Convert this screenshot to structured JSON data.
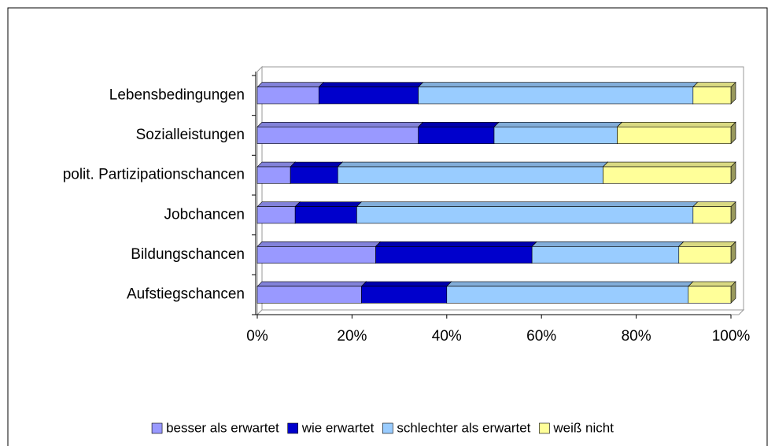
{
  "chart_data": {
    "type": "stacked_bar_3d",
    "orientation": "horizontal",
    "categories": [
      "Lebensbedingungen",
      "Sozialleistungen",
      "polit. Partizipationschancen",
      "Jobchancen",
      "Bildungschancen",
      "Aufstiegschancen"
    ],
    "series": [
      {
        "name": "besser als erwartet",
        "color": "#9999ff",
        "values": [
          13,
          34,
          7,
          8,
          25,
          22
        ]
      },
      {
        "name": "wie erwartet",
        "color": "#0000cc",
        "values": [
          21,
          16,
          10,
          13,
          33,
          18
        ]
      },
      {
        "name": "schlechter als erwartet",
        "color": "#99ccff",
        "values": [
          58,
          26,
          56,
          71,
          31,
          51
        ]
      },
      {
        "name": "weiß nicht",
        "color": "#ffff99",
        "values": [
          8,
          24,
          27,
          8,
          11,
          9
        ]
      }
    ],
    "xlim": [
      0,
      100
    ],
    "xticks": [
      {
        "value": 0,
        "label": "0%"
      },
      {
        "value": 20,
        "label": "20%"
      },
      {
        "value": 40,
        "label": "40%"
      },
      {
        "value": 60,
        "label": "60%"
      },
      {
        "value": 80,
        "label": "80%"
      },
      {
        "value": 100,
        "label": "100%"
      }
    ],
    "legend": "bottom"
  }
}
